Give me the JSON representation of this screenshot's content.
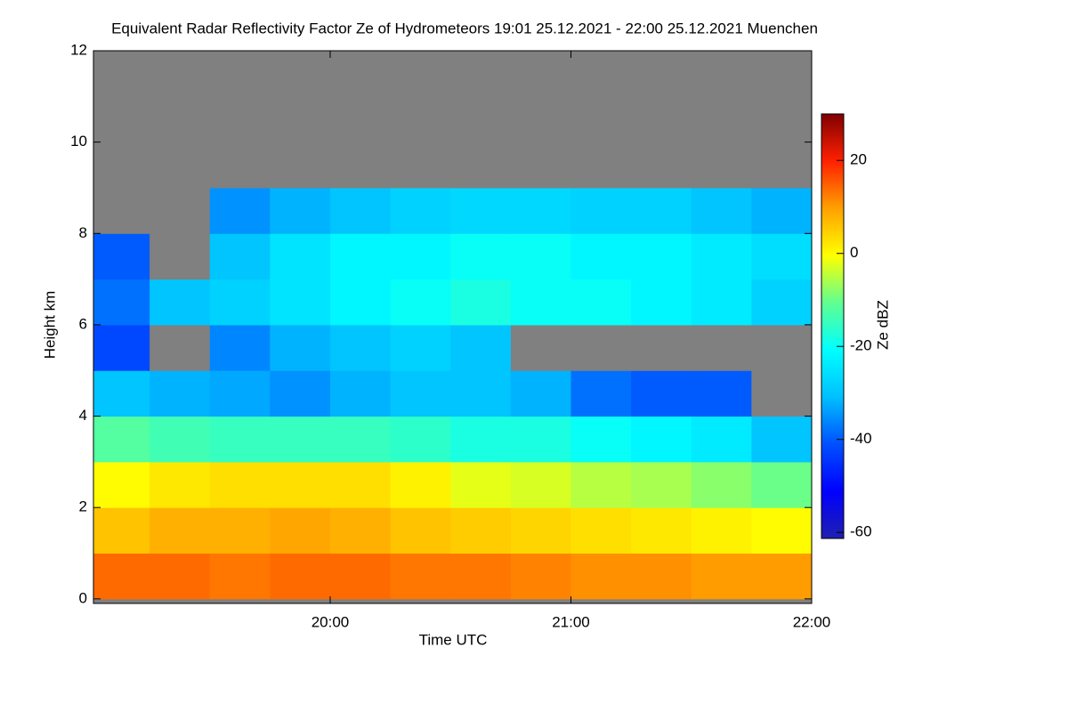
{
  "chart_data": {
    "type": "heatmap",
    "title": "Equivalent Radar Reflectivity Factor Ze of Hydrometeors   19:01 25.12.2021 - 22:00 25.12.2021 Muenchen",
    "xlabel": "Time UTC",
    "ylabel": "Height km",
    "colorbar_label": "Ze dBZ",
    "xlim": [
      19.0167,
      22
    ],
    "ylim": [
      -0.1,
      12
    ],
    "xticks": [
      {
        "value": 20,
        "label": "20:00"
      },
      {
        "value": 21,
        "label": "21:00"
      },
      {
        "value": 22,
        "label": "22:00"
      }
    ],
    "yticks": [
      0,
      2,
      4,
      6,
      8,
      10,
      12
    ],
    "x_bins": [
      19.0167,
      19.25,
      19.5,
      19.75,
      20,
      20.25,
      20.5,
      20.75,
      21,
      21.25,
      21.5,
      21.75,
      22
    ],
    "y_bins": [
      0,
      1,
      2,
      3,
      4,
      5,
      6,
      7,
      8,
      9,
      10,
      11,
      12
    ],
    "z": [
      [
        14,
        14,
        13,
        14,
        14,
        13,
        13,
        12,
        11,
        11,
        10,
        10
      ],
      [
        6,
        8,
        8,
        9,
        8,
        6,
        5,
        4,
        3,
        2,
        1,
        0
      ],
      [
        0,
        2,
        3,
        3,
        3,
        1,
        -2,
        -3,
        -5,
        -6,
        -8,
        -10
      ],
      [
        -12,
        -14,
        -15,
        -15,
        -15,
        -16,
        -18,
        -18,
        -20,
        -22,
        -24,
        -30
      ],
      [
        -30,
        -32,
        -33,
        -35,
        -32,
        -30,
        -30,
        -32,
        -38,
        -40,
        -40,
        null
      ],
      [
        -42,
        null,
        -36,
        -32,
        -30,
        -28,
        -30,
        null,
        null,
        null,
        null,
        null
      ],
      [
        -38,
        -30,
        -28,
        -25,
        -22,
        -20,
        -18,
        -20,
        -20,
        -22,
        -24,
        -28
      ],
      [
        -40,
        null,
        -30,
        -25,
        -22,
        -22,
        -20,
        -20,
        -22,
        -22,
        -24,
        -26
      ],
      [
        null,
        null,
        -35,
        -32,
        -30,
        -28,
        -27,
        -27,
        -28,
        -28,
        -30,
        -32
      ],
      [
        null,
        null,
        null,
        null,
        null,
        null,
        null,
        null,
        null,
        null,
        null,
        null
      ],
      [
        null,
        null,
        null,
        null,
        null,
        null,
        null,
        null,
        null,
        null,
        null,
        null
      ],
      [
        null,
        null,
        null,
        null,
        null,
        null,
        null,
        null,
        null,
        null,
        null,
        null
      ]
    ],
    "clim": [
      -61.3,
      30
    ],
    "cticks": [
      20,
      0,
      -20,
      -40,
      -60
    ],
    "colormap": [
      "#2020b0",
      "#0000ff",
      "#0050ff",
      "#00c0ff",
      "#00ffff",
      "#60ff90",
      "#ffff00",
      "#ffa000",
      "#ff2000",
      "#800000"
    ],
    "null_color": "#808080"
  }
}
